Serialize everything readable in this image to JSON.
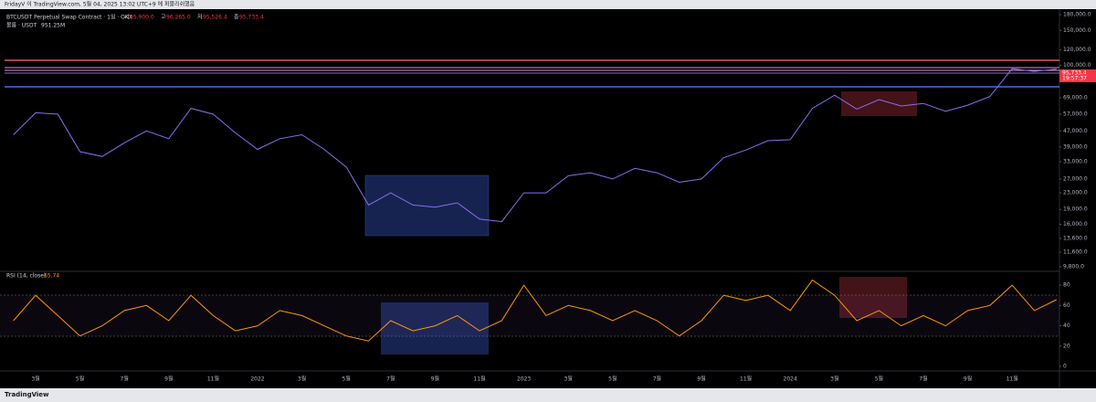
{
  "header": {
    "publish_info": "FridayV 이 TradingView.com, 5월 04, 2025 13:02 UTC+9 에 퍼블리쉬했음"
  },
  "footer": {
    "brand": "TradingView"
  },
  "chart_data": [
    {
      "type": "line",
      "title": "BTCUSDT Perpetual Swap Contract · 1일 · OKX",
      "ohlc": [
        {
          "label": "시",
          "value": "95,900.0"
        },
        {
          "label": "고",
          "value": "96,265.0"
        },
        {
          "label": "저",
          "value": "95,526.4"
        },
        {
          "label": "종",
          "value": "95,733.4"
        }
      ],
      "volume_label": "볼륨 · USDT",
      "volume_value": "951.25M",
      "last_price": "95,733.4",
      "countdown": "19:57:37",
      "log_scale": true,
      "color": "#8c6cf0",
      "values": [
        45000,
        58000,
        57000,
        37000,
        35000,
        41000,
        47000,
        43000,
        61000,
        57000,
        46000,
        38000,
        43000,
        45000,
        38000,
        31000,
        20000,
        23000,
        20000,
        19500,
        20500,
        17000,
        16500,
        23000,
        23000,
        28000,
        29000,
        27000,
        30500,
        29000,
        26000,
        27000,
        34500,
        37700,
        42000,
        42500,
        61000,
        71000,
        60500,
        67500,
        62700,
        64600,
        59000,
        63300,
        70000,
        96400,
        93500,
        96000
      ],
      "ylim": [
        9800,
        180000
      ],
      "yticks": [
        {
          "value": 180000,
          "label": "180,000.0"
        },
        {
          "value": 150000,
          "label": "150,000.0"
        },
        {
          "value": 120000,
          "label": "120,000.0"
        },
        {
          "value": 100000,
          "label": "100,000.0"
        },
        {
          "value": 69000,
          "label": "69,000.0"
        },
        {
          "value": 57000,
          "label": "57,000.0"
        },
        {
          "value": 47000,
          "label": "47,000.0"
        },
        {
          "value": 39000,
          "label": "39,000.0"
        },
        {
          "value": 33000,
          "label": "33,000.0"
        },
        {
          "value": 27000,
          "label": "27,000.0"
        },
        {
          "value": 23000,
          "label": "23,000.0"
        },
        {
          "value": 19000,
          "label": "19,000.0"
        },
        {
          "value": 16000,
          "label": "16,000.0"
        },
        {
          "value": 13600,
          "label": "13,600.0"
        },
        {
          "value": 11600,
          "label": "11,600.0"
        },
        {
          "value": 9800,
          "label": "9,800.0"
        }
      ]
    },
    {
      "type": "line",
      "title": "RSI (14, close)",
      "current": 65.74,
      "color": "#ff9800",
      "categories": [
        null,
        "3월",
        null,
        "5월",
        null,
        "7월",
        null,
        "9월",
        null,
        "11월",
        null,
        "2022",
        null,
        "3월",
        null,
        "5월",
        null,
        "7월",
        null,
        "9월",
        null,
        "11월",
        null,
        "2023",
        null,
        "3월",
        null,
        "5월",
        null,
        "7월",
        null,
        "9월",
        null,
        "11월",
        null,
        "2024",
        null,
        "3월",
        null,
        "5월",
        null,
        "7월",
        null,
        "9월",
        null,
        "11월",
        null,
        null
      ],
      "values": [
        45,
        70,
        50,
        30,
        40,
        55,
        60,
        45,
        70,
        50,
        35,
        40,
        55,
        50,
        40,
        30,
        25,
        45,
        35,
        40,
        50,
        35,
        45,
        80,
        50,
        60,
        55,
        45,
        55,
        45,
        30,
        45,
        70,
        65,
        70,
        55,
        85,
        70,
        45,
        55,
        40,
        50,
        40,
        55,
        60,
        80,
        55,
        65.74
      ],
      "ylim": [
        0,
        90
      ],
      "yticks": [
        80,
        60,
        40,
        20,
        0
      ]
    }
  ]
}
